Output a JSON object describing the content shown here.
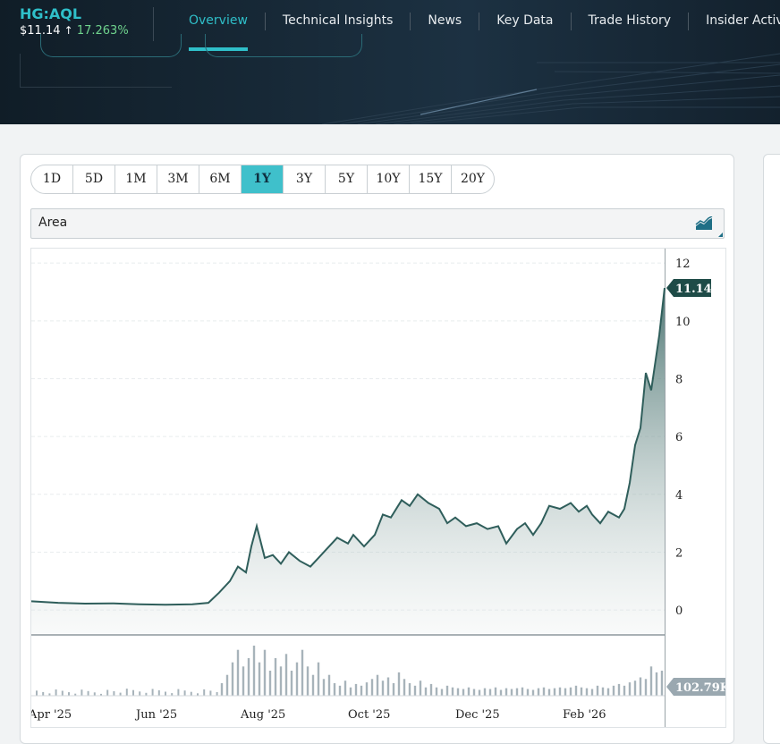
{
  "header": {
    "symbol": "HG:AQL",
    "price": "$11.14",
    "change_arrow": "↑",
    "change_pct": "17.263%",
    "colors": {
      "accent": "#2fbfc9",
      "positive": "#6fd38d",
      "background": "#101d27"
    }
  },
  "nav": {
    "items": [
      {
        "label": "Overview",
        "active": true
      },
      {
        "label": "Technical Insights",
        "active": false
      },
      {
        "label": "News",
        "active": false
      },
      {
        "label": "Key Data",
        "active": false
      },
      {
        "label": "Trade History",
        "active": false
      },
      {
        "label": "Insider Activ",
        "active": false
      }
    ]
  },
  "toolbar": {
    "ranges": [
      "1D",
      "5D",
      "1M",
      "3M",
      "6M",
      "1Y",
      "3Y",
      "5Y",
      "10Y",
      "15Y",
      "20Y"
    ],
    "active_range": "1Y",
    "chart_type": "Area",
    "chart_type_icon": "area-chart-icon"
  },
  "chart_data": {
    "type": "area",
    "x_tick_labels": [
      "Apr '25",
      "Jun '25",
      "Aug '25",
      "Oct '25",
      "Dec '25",
      "Feb '26"
    ],
    "y_ticks": [
      0,
      2,
      4,
      6,
      8,
      10,
      12
    ],
    "ylim": [
      -0.8,
      12.5
    ],
    "last_price_label": "11.14",
    "last_volume_label": "102.79K",
    "price": {
      "x_months": [
        0,
        0.5,
        1,
        1.5,
        2,
        2.5,
        3,
        3.3,
        3.5,
        3.7,
        3.85,
        4.0,
        4.1,
        4.2,
        4.35,
        4.5,
        4.65,
        4.8,
        5.0,
        5.2,
        5.35,
        5.5,
        5.7,
        5.9,
        6.0,
        6.2,
        6.4,
        6.55,
        6.7,
        6.9,
        7.05,
        7.2,
        7.4,
        7.6,
        7.75,
        7.9,
        8.1,
        8.3,
        8.5,
        8.7,
        8.85,
        9.05,
        9.2,
        9.35,
        9.5,
        9.65,
        9.85,
        10.05,
        10.2,
        10.35,
        10.45,
        10.6,
        10.75,
        10.95,
        11.05,
        11.15,
        11.25,
        11.35,
        11.45,
        11.55,
        11.7,
        11.8
      ],
      "values": [
        0.3,
        0.25,
        0.22,
        0.23,
        0.2,
        0.18,
        0.2,
        0.25,
        0.6,
        1.0,
        1.5,
        1.3,
        2.2,
        2.9,
        1.8,
        1.9,
        1.6,
        2.0,
        1.7,
        1.5,
        1.8,
        2.1,
        2.5,
        2.3,
        2.6,
        2.2,
        2.6,
        3.3,
        3.2,
        3.8,
        3.6,
        4.0,
        3.7,
        3.5,
        3.0,
        3.2,
        2.9,
        3.0,
        2.8,
        2.9,
        2.3,
        2.8,
        3.0,
        2.6,
        3.0,
        3.6,
        3.5,
        3.7,
        3.4,
        3.6,
        3.3,
        3.0,
        3.4,
        3.2,
        3.5,
        4.4,
        5.7,
        6.3,
        8.2,
        7.6,
        9.5,
        11.14
      ]
    },
    "volume": {
      "x_months": [
        3.55,
        3.65,
        3.75,
        3.85,
        3.95,
        4.05,
        4.15,
        4.25,
        4.35,
        4.45,
        4.55,
        4.65,
        4.75,
        4.85,
        4.95,
        5.05,
        5.15,
        5.25,
        5.35,
        5.45,
        5.55,
        5.65,
        5.75,
        5.85,
        5.95,
        6.05,
        6.15,
        6.25,
        6.35,
        6.45,
        6.55,
        6.65,
        6.75,
        6.85,
        6.95,
        7.05,
        7.15,
        7.25,
        7.35,
        7.45,
        7.55,
        7.65,
        7.75,
        7.85,
        7.95,
        8.05,
        8.15,
        8.25,
        8.35,
        8.45,
        8.55,
        8.65,
        8.75,
        8.85,
        8.95,
        9.05,
        9.15,
        9.25,
        9.35,
        9.45,
        9.55,
        9.65,
        9.75,
        9.85,
        9.95,
        10.05,
        10.15,
        10.25,
        10.35,
        10.45,
        10.55,
        10.65,
        10.75,
        10.85,
        10.95,
        11.05,
        11.15,
        11.25,
        11.35,
        11.45,
        11.55,
        11.65,
        11.75
      ],
      "values": [
        15,
        25,
        40,
        55,
        35,
        45,
        60,
        40,
        55,
        30,
        45,
        35,
        50,
        30,
        40,
        55,
        35,
        25,
        40,
        20,
        25,
        15,
        12,
        18,
        10,
        14,
        12,
        16,
        20,
        25,
        18,
        22,
        15,
        28,
        20,
        15,
        12,
        18,
        10,
        14,
        10,
        8,
        12,
        10,
        9,
        8,
        10,
        8,
        7,
        9,
        8,
        10,
        7,
        9,
        8,
        9,
        10,
        8,
        7,
        9,
        10,
        8,
        9,
        10,
        9,
        10,
        12,
        10,
        9,
        8,
        12,
        10,
        9,
        12,
        14,
        12,
        16,
        18,
        22,
        20,
        35,
        28,
        30
      ]
    }
  }
}
